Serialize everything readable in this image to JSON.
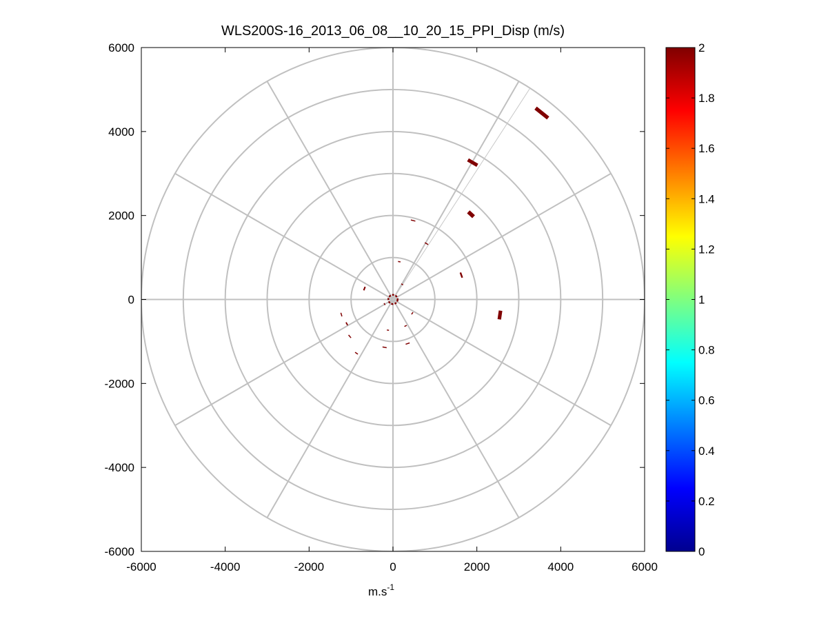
{
  "chart_data": {
    "type": "scatter",
    "projection": "polar-ppi",
    "title": "WLS200S-16_2013_06_08__10_20_15_PPI_Disp (m/s)",
    "xlabel": "m.s",
    "xlabel_superscript": "-1",
    "ylabel": "",
    "xlim": [
      -6000,
      6000
    ],
    "ylim": [
      -6000,
      6000
    ],
    "x_ticks": [
      "-6000",
      "-4000",
      "-2000",
      "0",
      "2000",
      "4000",
      "6000"
    ],
    "y_ticks": [
      "6000",
      "4000",
      "2000",
      "0",
      "-2000",
      "-4000",
      "-6000"
    ],
    "x_tick_values": [
      -6000,
      -4000,
      -2000,
      0,
      2000,
      4000,
      6000
    ],
    "y_tick_values": [
      6000,
      4000,
      2000,
      0,
      -2000,
      -4000,
      -6000
    ],
    "polar_grid": {
      "ring_radii": [
        1000,
        2000,
        3000,
        4000,
        5000,
        6000
      ],
      "spoke_angles_deg": [
        0,
        30,
        60,
        90,
        120,
        150,
        180,
        210,
        240,
        270,
        300,
        330
      ]
    },
    "beam_line": {
      "angle_deg": 57,
      "range": [
        0,
        6000
      ]
    },
    "colorbar": {
      "colormap": "jet",
      "clim": [
        0,
        2
      ],
      "ticks": [
        "2",
        "1.8",
        "1.6",
        "1.4",
        "1.2",
        "1",
        "0.8",
        "0.6",
        "0.4",
        "0.2",
        "0"
      ],
      "tick_values": [
        2,
        1.8,
        1.6,
        1.4,
        1.2,
        1,
        0.8,
        0.6,
        0.4,
        0.2,
        0
      ]
    },
    "points": [
      {
        "x": 3550,
        "y": 4440,
        "length": 380,
        "thickness": 90,
        "value": 2
      },
      {
        "x": 1900,
        "y": 3260,
        "length": 260,
        "thickness": 85,
        "value": 2
      },
      {
        "x": 1860,
        "y": 2030,
        "length": 170,
        "thickness": 95,
        "value": 2
      },
      {
        "x": 2550,
        "y": -370,
        "length": 210,
        "thickness": 85,
        "value": 2
      },
      {
        "x": 1630,
        "y": 580,
        "length": 130,
        "thickness": 40,
        "value": 2
      },
      {
        "x": 480,
        "y": 1880,
        "length": 110,
        "thickness": 25,
        "value": 2
      },
      {
        "x": 800,
        "y": 1330,
        "length": 90,
        "thickness": 25,
        "value": 2
      },
      {
        "x": 150,
        "y": 900,
        "length": 60,
        "thickness": 25,
        "value": 2
      },
      {
        "x": -680,
        "y": 260,
        "length": 90,
        "thickness": 35,
        "value": 2
      },
      {
        "x": -1230,
        "y": -360,
        "length": 90,
        "thickness": 25,
        "value": 2
      },
      {
        "x": -1100,
        "y": -580,
        "length": 80,
        "thickness": 30,
        "value": 2
      },
      {
        "x": -1030,
        "y": -880,
        "length": 90,
        "thickness": 25,
        "value": 2
      },
      {
        "x": -870,
        "y": -1280,
        "length": 80,
        "thickness": 25,
        "value": 2
      },
      {
        "x": -200,
        "y": -1140,
        "length": 100,
        "thickness": 25,
        "value": 2
      },
      {
        "x": 350,
        "y": -1050,
        "length": 100,
        "thickness": 25,
        "value": 2
      },
      {
        "x": 300,
        "y": -630,
        "length": 60,
        "thickness": 20,
        "value": 2
      },
      {
        "x": 460,
        "y": -330,
        "length": 60,
        "thickness": 20,
        "value": 2
      },
      {
        "x": -120,
        "y": -730,
        "length": 50,
        "thickness": 20,
        "value": 2
      },
      {
        "x": 220,
        "y": 360,
        "length": 50,
        "thickness": 20,
        "value": 2
      },
      {
        "x": -200,
        "y": -110,
        "length": 50,
        "thickness": 20,
        "value": 2
      }
    ],
    "center_marker": {
      "x": 0,
      "y": 0,
      "radius": 110,
      "value": 2
    },
    "grid": true,
    "legend": "none"
  }
}
